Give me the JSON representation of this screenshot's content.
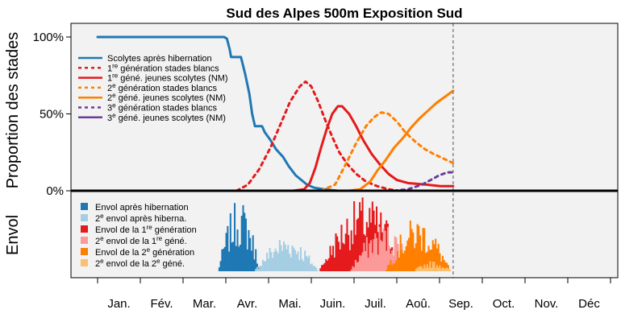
{
  "chart_data": {
    "type": "line",
    "title": "Sud des Alpes 500m Exposition Sud",
    "ylabel_top": "Proportion des stades",
    "ylabel_bottom": "Envol",
    "y_ticks": [
      {
        "value": 0,
        "label": "0%"
      },
      {
        "value": 50,
        "label": "50%"
      },
      {
        "value": 100,
        "label": "100%"
      }
    ],
    "months": [
      "Jan.",
      "Fév.",
      "Mar.",
      "Avr.",
      "Mai.",
      "Juin.",
      "Juil.",
      "Aoû.",
      "Sep.",
      "Oct.",
      "Nov.",
      "Déc"
    ],
    "x_range": [
      1,
      366
    ],
    "y_range": [
      0,
      107
    ],
    "current_day": 254,
    "background": "#f2f2f2",
    "series": [
      {
        "name": "Scolytes après hibernation",
        "color": "#1f78b4",
        "dash": false,
        "points": [
          [
            1,
            100
          ],
          [
            91,
            100
          ],
          [
            93,
            99
          ],
          [
            95,
            92
          ],
          [
            96,
            87
          ],
          [
            100,
            87
          ],
          [
            103,
            87
          ],
          [
            106,
            76
          ],
          [
            109,
            63
          ],
          [
            111,
            50
          ],
          [
            113,
            42
          ],
          [
            118,
            42
          ],
          [
            120,
            38
          ],
          [
            124,
            33
          ],
          [
            128,
            27
          ],
          [
            133,
            22
          ],
          [
            137,
            16
          ],
          [
            142,
            10
          ],
          [
            146,
            7
          ],
          [
            150,
            4
          ],
          [
            155,
            2
          ],
          [
            162,
            1
          ],
          [
            172,
            0
          ],
          [
            254,
            0
          ]
        ]
      },
      {
        "name": "1re génération stades blancs",
        "color": "#e41a1c",
        "dash": true,
        "points": [
          [
            100,
            0
          ],
          [
            108,
            4
          ],
          [
            116,
            14
          ],
          [
            124,
            28
          ],
          [
            132,
            45
          ],
          [
            138,
            58
          ],
          [
            145,
            68
          ],
          [
            149,
            71
          ],
          [
            153,
            68
          ],
          [
            158,
            58
          ],
          [
            163,
            46
          ],
          [
            168,
            35
          ],
          [
            173,
            25
          ],
          [
            179,
            17
          ],
          [
            185,
            11
          ],
          [
            192,
            6
          ],
          [
            200,
            3
          ],
          [
            208,
            1
          ],
          [
            215,
            0
          ]
        ]
      },
      {
        "name": "1re géné. jeunes scolytes (NM)",
        "color": "#e41a1c",
        "dash": false,
        "points": [
          [
            140,
            0
          ],
          [
            148,
            1
          ],
          [
            152,
            5
          ],
          [
            156,
            15
          ],
          [
            160,
            28
          ],
          [
            164,
            40
          ],
          [
            168,
            50
          ],
          [
            172,
            55
          ],
          [
            175,
            55
          ],
          [
            180,
            50
          ],
          [
            185,
            42
          ],
          [
            190,
            33
          ],
          [
            196,
            24
          ],
          [
            202,
            17
          ],
          [
            208,
            11
          ],
          [
            214,
            7
          ],
          [
            222,
            5
          ],
          [
            235,
            4
          ],
          [
            245,
            3
          ],
          [
            254,
            3
          ]
        ]
      },
      {
        "name": "2e génération stades blancs",
        "color": "#ff7f00",
        "dash": true,
        "points": [
          [
            160,
            0
          ],
          [
            170,
            4
          ],
          [
            178,
            18
          ],
          [
            185,
            31
          ],
          [
            192,
            42
          ],
          [
            198,
            48
          ],
          [
            203,
            51
          ],
          [
            208,
            50
          ],
          [
            214,
            45
          ],
          [
            220,
            38
          ],
          [
            227,
            32
          ],
          [
            234,
            27
          ],
          [
            240,
            24
          ],
          [
            247,
            21
          ],
          [
            254,
            18
          ]
        ]
      },
      {
        "name": "2e géné. jeunes scolytes (NM)",
        "color": "#ff7f00",
        "dash": false,
        "points": [
          [
            180,
            0
          ],
          [
            188,
            1
          ],
          [
            195,
            6
          ],
          [
            200,
            13
          ],
          [
            206,
            20
          ],
          [
            212,
            28
          ],
          [
            218,
            34
          ],
          [
            224,
            41
          ],
          [
            230,
            47
          ],
          [
            236,
            52
          ],
          [
            242,
            57
          ],
          [
            248,
            61
          ],
          [
            254,
            65
          ]
        ]
      },
      {
        "name": "3e génération stades blancs",
        "color": "#6a3d9a",
        "dash": true,
        "points": [
          [
            212,
            0
          ],
          [
            222,
            1
          ],
          [
            232,
            4
          ],
          [
            238,
            7
          ],
          [
            244,
            10
          ],
          [
            250,
            12
          ],
          [
            254,
            12
          ]
        ]
      },
      {
        "name": "3e géné. jeunes scolytes (NM)",
        "color": "#6a3d9a",
        "dash": false,
        "points": [
          [
            220,
            0
          ],
          [
            254,
            0
          ]
        ]
      }
    ],
    "envol_legend": [
      {
        "name": "Envol après hibernation",
        "color": "#1f78b4"
      },
      {
        "name": "2e envol après hiberna.",
        "color": "#a6cee3"
      },
      {
        "name": "Envol de la 1re génération",
        "color": "#e41a1c"
      },
      {
        "name": "2e envol de la 1re géné.",
        "color": "#fb9a99"
      },
      {
        "name": "Envol de la 2e génération",
        "color": "#ff7f00"
      },
      {
        "name": "2e envol de la 2e géné.",
        "color": "#fdbf6f"
      }
    ],
    "envol_segments": [
      {
        "series": 0,
        "from": 86,
        "to": 118,
        "max": 0.82
      },
      {
        "series": 1,
        "from": 112,
        "to": 160,
        "max": 0.42
      },
      {
        "series": 2,
        "from": 158,
        "to": 226,
        "max": 0.85
      },
      {
        "series": 3,
        "from": 180,
        "to": 230,
        "max": 0.55
      },
      {
        "series": 4,
        "from": 205,
        "to": 254,
        "max": 0.62
      },
      {
        "series": 5,
        "from": 225,
        "to": 254,
        "max": 0.12
      }
    ]
  }
}
